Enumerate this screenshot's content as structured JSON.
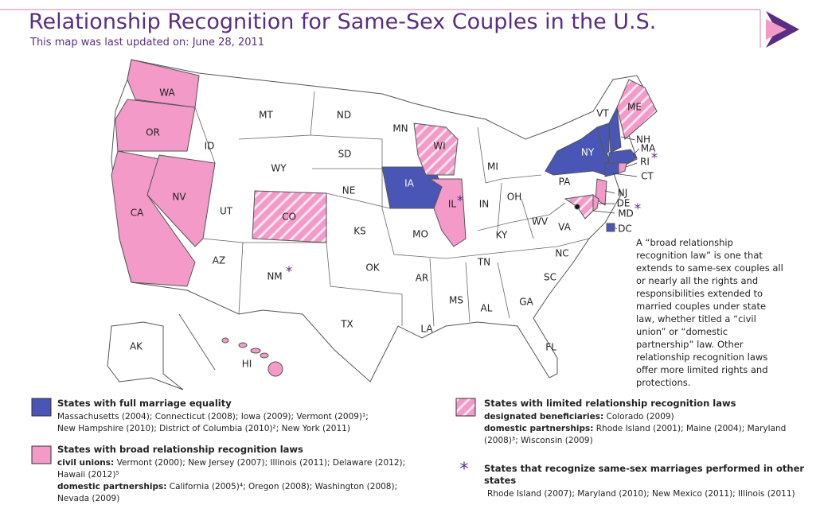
{
  "header": {
    "title": "Relationship Recognition for Same-Sex Couples in the U.S.",
    "subtitle": "This map was last updated on: June 28, 2011"
  },
  "map": {
    "recognition_marker": "*",
    "states": [
      "WA",
      "OR",
      "CA",
      "NV",
      "ID",
      "MT",
      "WY",
      "UT",
      "AZ",
      "NM",
      "CO",
      "ND",
      "SD",
      "NE",
      "KS",
      "OK",
      "TX",
      "MN",
      "IA",
      "MO",
      "AR",
      "LA",
      "WI",
      "IL",
      "MI",
      "IN",
      "OH",
      "KY",
      "TN",
      "MS",
      "AL",
      "GA",
      "FL",
      "SC",
      "NC",
      "VA",
      "WV",
      "PA",
      "NY",
      "VT",
      "NH",
      "ME",
      "MA",
      "RI",
      "CT",
      "NJ",
      "DE",
      "MD",
      "DC",
      "AK",
      "HI"
    ]
  },
  "note": "A “broad relationship recognition law” is one that extends to same-sex couples all or nearly all the rights and responsibilities extended to married couples under state law, whether titled a “civil union” or “domestic partnership” law. Other relationship recognition laws offer more limited rights and protections.",
  "legend": [
    {
      "title": "States with full marriage equality",
      "lines": [
        {
          "text": "Massachusetts (2004); Connecticut (2008); Iowa (2009); Vermont (2009)¹; New Hampshire (2010); District of Columbia (2010)²; New York (2011)"
        }
      ]
    },
    {
      "title": "States with broad relationship recognition laws",
      "lines": [
        {
          "label": "civil unions:",
          "text": "Vermont (2000); New Jersey (2007); Illinois (2011); Delaware (2012); Hawaii (2012)⁵"
        },
        {
          "label": "domestic partnerships:",
          "text": "California (2005)⁴; Oregon (2008); Washington (2008); Nevada (2009)"
        }
      ]
    },
    {
      "title": "States with limited relationship recognition laws",
      "lines": [
        {
          "label": "designated beneficiaries:",
          "text": "Colorado (2009)"
        },
        {
          "label": "domestic partnerships:",
          "text": "Rhode Island (2001); Maine (2004); Maryland (2008)³; Wisconsin (2009)"
        }
      ]
    },
    {
      "title": "States that recognize same-sex marriages performed in other states",
      "lines": [
        {
          "text": "Rhode Island (2007); Maryland (2010); New Mexico (2011); Illinois (2011)"
        }
      ]
    }
  ]
}
